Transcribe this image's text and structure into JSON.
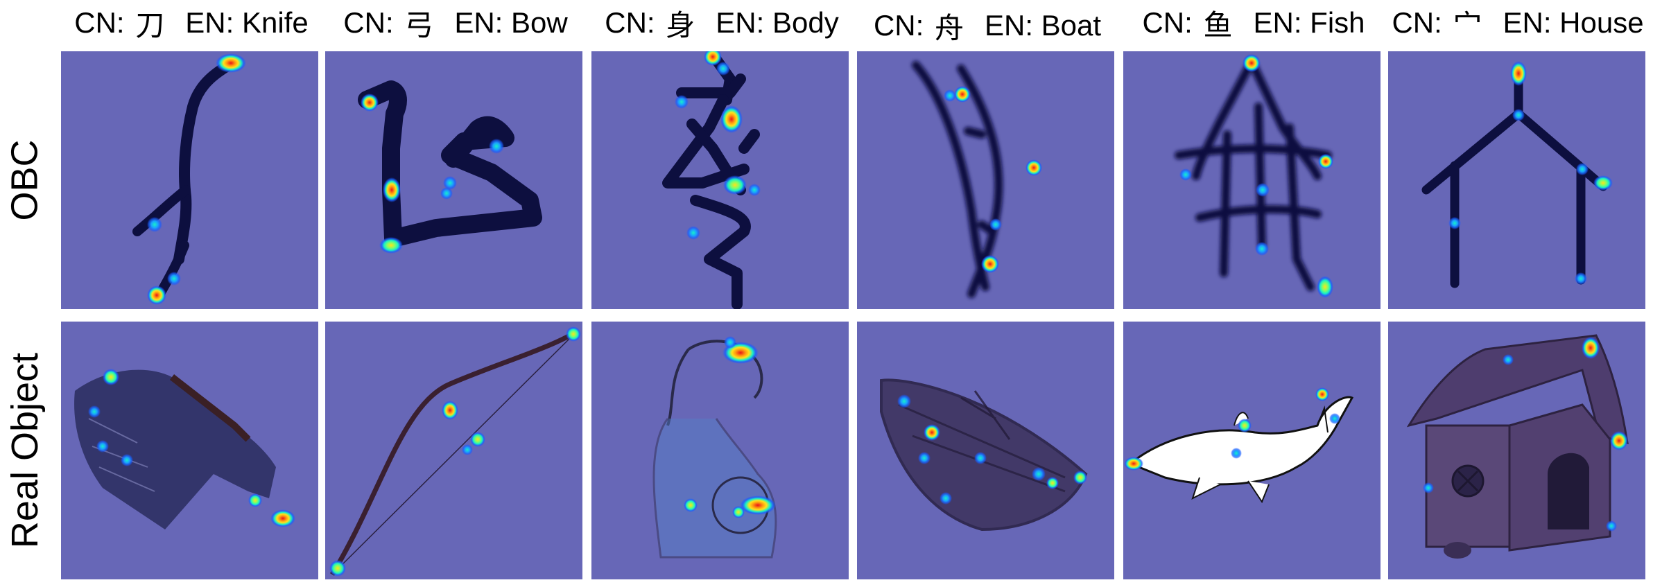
{
  "columns": [
    {
      "cn_prefix": "CN:",
      "cn_char": "刀",
      "en_prefix": "EN:",
      "en_word": "Knife"
    },
    {
      "cn_prefix": "CN:",
      "cn_char": "弓",
      "en_prefix": "EN:",
      "en_word": "Bow"
    },
    {
      "cn_prefix": "CN:",
      "cn_char": "身",
      "en_prefix": "EN:",
      "en_word": "Body"
    },
    {
      "cn_prefix": "CN:",
      "cn_char": "舟",
      "en_prefix": "EN:",
      "en_word": "Boat"
    },
    {
      "cn_prefix": "CN:",
      "cn_char": "鱼",
      "en_prefix": "EN:",
      "en_word": "Fish"
    },
    {
      "cn_prefix": "CN:",
      "cn_char": "宀",
      "en_prefix": "EN:",
      "en_word": "House"
    }
  ],
  "rows": [
    {
      "label": "OBC"
    },
    {
      "label": "Real Object"
    }
  ],
  "colors": {
    "panel_background": "#6767b7",
    "stroke": "#0d0f3f",
    "heat_low": "#1a5cff",
    "heat_mid": "#18f0c8",
    "heat_high": "#ffe21a",
    "heat_peak": "#e8141a"
  }
}
